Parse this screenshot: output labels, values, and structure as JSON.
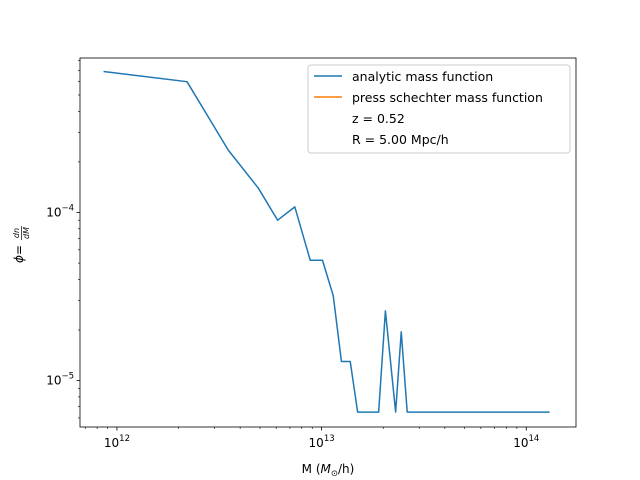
{
  "chart_data": {
    "type": "line",
    "xscale": "log",
    "yscale": "log",
    "xlim": [
      660000000000.0,
      175000000000000.0
    ],
    "ylim": [
      5.3e-06,
      0.00083
    ],
    "xlabel": {
      "pre": "M (",
      "math": "M",
      "sub": "⊙",
      "post": "/h)"
    },
    "ylabel": {
      "phi": "ϕ",
      "eq": " = ",
      "num": "dn",
      "den": "dM"
    },
    "x_ticks": [
      {
        "value": 1000000000000.0,
        "base": "10",
        "exp": "12"
      },
      {
        "value": 10000000000000.0,
        "base": "10",
        "exp": "13"
      },
      {
        "value": 100000000000000.0,
        "base": "10",
        "exp": "14"
      }
    ],
    "y_ticks": [
      {
        "value": 1e-05,
        "base": "10",
        "exp": "−5"
      },
      {
        "value": 0.0001,
        "base": "10",
        "exp": "−4"
      }
    ],
    "series": [
      {
        "name": "analytic mass function",
        "color": "#1f77b4",
        "x": [
          860000000000.0,
          2200000000000.0,
          3500000000000.0,
          4900000000000.0,
          6100000000000.0,
          7400000000000.0,
          8800000000000.0,
          10100000000000.0,
          11400000000000.0,
          12500000000000.0,
          13800000000000.0,
          15000000000000.0,
          16200000000000.0,
          19000000000000.0,
          20500000000000.0,
          23000000000000.0,
          24500000000000.0,
          26200000000000.0,
          130000000000000.0
        ],
        "y": [
          0.00069,
          0.0006,
          0.000235,
          0.00014,
          9e-05,
          0.000108,
          5.2e-05,
          5.2e-05,
          3.2e-05,
          1.3e-05,
          1.3e-05,
          6.5e-06,
          6.5e-06,
          6.5e-06,
          2.6e-05,
          6.5e-06,
          1.95e-05,
          6.5e-06,
          6.5e-06
        ]
      },
      {
        "name": "press schechter mass function",
        "color": "#ff7f0e",
        "x": [],
        "y": []
      }
    ],
    "legend": {
      "position": "top-right",
      "extra": [
        "z = 0.52",
        "R = 5.00 Mpc/h"
      ]
    }
  }
}
